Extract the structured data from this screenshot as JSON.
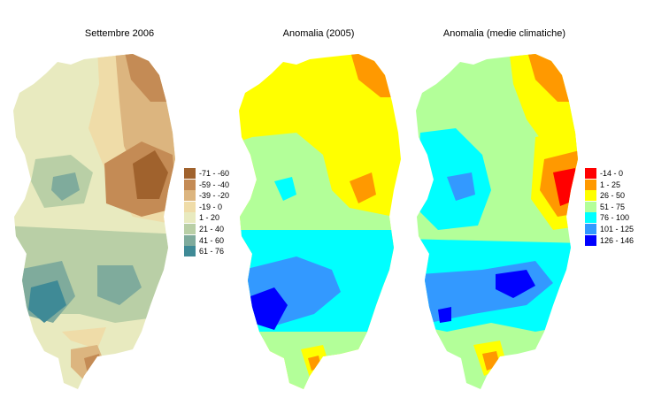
{
  "panels": [
    {
      "id": "sept2006",
      "title": "Settembre 2006",
      "legend": [
        {
          "label": "-71 - -60",
          "color": "#a0622d"
        },
        {
          "label": "-59 - -40",
          "color": "#c48b55"
        },
        {
          "label": "-39 - -20",
          "color": "#dcb57f"
        },
        {
          "label": "-19 - 0",
          "color": "#efdca8"
        },
        {
          "label": "1 - 20",
          "color": "#e8eabf"
        },
        {
          "label": "21 - 40",
          "color": "#b9cfa6"
        },
        {
          "label": "41 - 60",
          "color": "#7fab9c"
        },
        {
          "label": "61 - 76",
          "color": "#3f8a96"
        }
      ]
    },
    {
      "id": "anom2005",
      "title": "Anomalia (2005)",
      "legend": []
    },
    {
      "id": "anomclim",
      "title": "Anomalia (medie climatiche)",
      "legend": [
        {
          "label": "-14 - 0",
          "color": "#ff0000"
        },
        {
          "label": "1 - 25",
          "color": "#ff9900"
        },
        {
          "label": "26 - 50",
          "color": "#ffff00"
        },
        {
          "label": "51 - 75",
          "color": "#b3ff99"
        },
        {
          "label": "76 - 100",
          "color": "#00ffff"
        },
        {
          "label": "101 - 125",
          "color": "#3399ff"
        },
        {
          "label": "126 - 146",
          "color": "#0000ff"
        }
      ]
    }
  ]
}
